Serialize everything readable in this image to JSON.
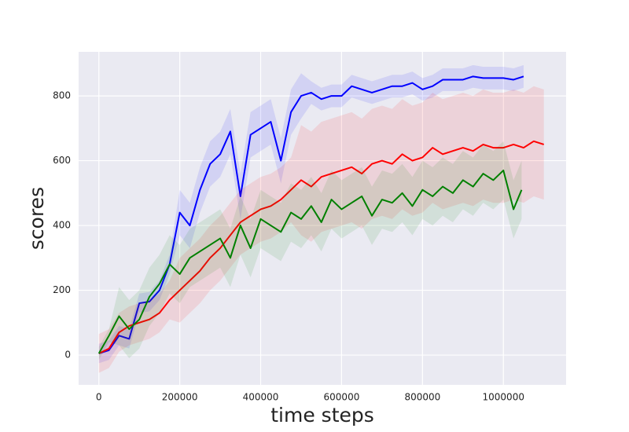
{
  "chart_data": {
    "type": "line",
    "xlabel": "time steps",
    "ylabel": "scores",
    "xlim": [
      -50000,
      1155000
    ],
    "ylim": [
      -92,
      936
    ],
    "xticks": [
      0,
      200000,
      400000,
      600000,
      800000,
      1000000
    ],
    "yticks": [
      0,
      200,
      400,
      600,
      800
    ],
    "grid": true,
    "series": [
      {
        "color": "#0000ff",
        "x": [
          0,
          25000,
          50000,
          75000,
          100000,
          125000,
          150000,
          175000,
          200000,
          225000,
          250000,
          275000,
          300000,
          325000,
          350000,
          375000,
          400000,
          425000,
          450000,
          475000,
          500000,
          525000,
          550000,
          575000,
          600000,
          625000,
          650000,
          675000,
          700000,
          725000,
          750000,
          775000,
          800000,
          825000,
          850000,
          875000,
          900000,
          925000,
          950000,
          975000,
          1000000,
          1025000,
          1050000
        ],
        "values": [
          5,
          15,
          60,
          50,
          160,
          165,
          200,
          280,
          440,
          400,
          510,
          590,
          620,
          690,
          490,
          680,
          700,
          720,
          600,
          750,
          800,
          810,
          790,
          800,
          800,
          830,
          820,
          810,
          820,
          830,
          830,
          840,
          820,
          830,
          850,
          850,
          850,
          860,
          855,
          855,
          855,
          850,
          860
        ],
        "lower": [
          -25,
          -15,
          30,
          20,
          130,
          135,
          170,
          250,
          370,
          330,
          440,
          520,
          550,
          620,
          420,
          610,
          630,
          650,
          530,
          680,
          730,
          775,
          755,
          765,
          765,
          795,
          785,
          775,
          785,
          795,
          795,
          805,
          785,
          795,
          815,
          815,
          815,
          825,
          820,
          820,
          820,
          815,
          825
        ],
        "upper": [
          35,
          45,
          90,
          80,
          190,
          195,
          230,
          310,
          510,
          470,
          580,
          660,
          690,
          760,
          560,
          750,
          770,
          790,
          670,
          820,
          870,
          845,
          825,
          835,
          835,
          865,
          855,
          845,
          855,
          865,
          865,
          875,
          855,
          865,
          885,
          885,
          885,
          895,
          890,
          890,
          890,
          885,
          895
        ]
      },
      {
        "color": "#ff0000",
        "x": [
          0,
          25000,
          50000,
          75000,
          100000,
          125000,
          150000,
          175000,
          200000,
          225000,
          250000,
          275000,
          300000,
          325000,
          350000,
          375000,
          400000,
          425000,
          450000,
          475000,
          500000,
          525000,
          550000,
          575000,
          600000,
          625000,
          650000,
          675000,
          700000,
          725000,
          750000,
          775000,
          800000,
          825000,
          850000,
          875000,
          900000,
          925000,
          950000,
          975000,
          1000000,
          1025000,
          1050000,
          1075000,
          1100000
        ],
        "values": [
          5,
          20,
          70,
          90,
          100,
          110,
          130,
          170,
          200,
          230,
          260,
          300,
          330,
          370,
          410,
          430,
          450,
          460,
          480,
          510,
          540,
          520,
          550,
          560,
          570,
          580,
          560,
          590,
          600,
          590,
          620,
          600,
          610,
          640,
          620,
          630,
          640,
          630,
          650,
          640,
          640,
          650,
          640,
          660,
          650
        ],
        "lower": [
          -55,
          -40,
          10,
          30,
          40,
          50,
          70,
          110,
          100,
          130,
          160,
          200,
          230,
          270,
          310,
          330,
          350,
          360,
          380,
          410,
          370,
          350,
          380,
          390,
          400,
          410,
          390,
          420,
          430,
          420,
          450,
          430,
          440,
          470,
          450,
          460,
          470,
          460,
          480,
          470,
          470,
          480,
          470,
          490,
          480
        ],
        "upper": [
          65,
          80,
          130,
          150,
          160,
          170,
          190,
          230,
          300,
          330,
          360,
          400,
          430,
          470,
          510,
          530,
          550,
          560,
          580,
          610,
          710,
          690,
          720,
          730,
          740,
          750,
          730,
          760,
          770,
          760,
          790,
          770,
          780,
          810,
          790,
          800,
          810,
          800,
          820,
          810,
          810,
          820,
          810,
          830,
          820
        ]
      },
      {
        "color": "#008000",
        "x": [
          0,
          25000,
          50000,
          75000,
          100000,
          125000,
          150000,
          175000,
          200000,
          225000,
          250000,
          275000,
          300000,
          325000,
          350000,
          375000,
          400000,
          425000,
          450000,
          475000,
          500000,
          525000,
          550000,
          575000,
          600000,
          625000,
          650000,
          675000,
          700000,
          725000,
          750000,
          775000,
          800000,
          825000,
          850000,
          875000,
          900000,
          925000,
          950000,
          975000,
          1000000,
          1025000,
          1045000
        ],
        "values": [
          5,
          60,
          120,
          80,
          110,
          180,
          220,
          280,
          250,
          300,
          320,
          340,
          360,
          300,
          400,
          330,
          420,
          400,
          380,
          440,
          420,
          460,
          410,
          480,
          450,
          470,
          490,
          430,
          480,
          470,
          500,
          460,
          510,
          490,
          520,
          500,
          540,
          520,
          560,
          540,
          570,
          450,
          510
        ],
        "lower": [
          -15,
          40,
          30,
          -10,
          20,
          90,
          130,
          190,
          160,
          210,
          230,
          250,
          270,
          210,
          310,
          240,
          330,
          310,
          290,
          350,
          330,
          370,
          320,
          390,
          360,
          380,
          400,
          340,
          390,
          380,
          410,
          370,
          420,
          400,
          430,
          410,
          450,
          430,
          470,
          450,
          480,
          360,
          420
        ],
        "upper": [
          25,
          80,
          210,
          170,
          200,
          270,
          310,
          370,
          340,
          390,
          410,
          430,
          450,
          390,
          490,
          420,
          510,
          490,
          470,
          530,
          510,
          550,
          500,
          570,
          540,
          560,
          580,
          520,
          570,
          560,
          590,
          550,
          600,
          580,
          610,
          590,
          630,
          610,
          650,
          630,
          660,
          540,
          600
        ]
      }
    ]
  }
}
